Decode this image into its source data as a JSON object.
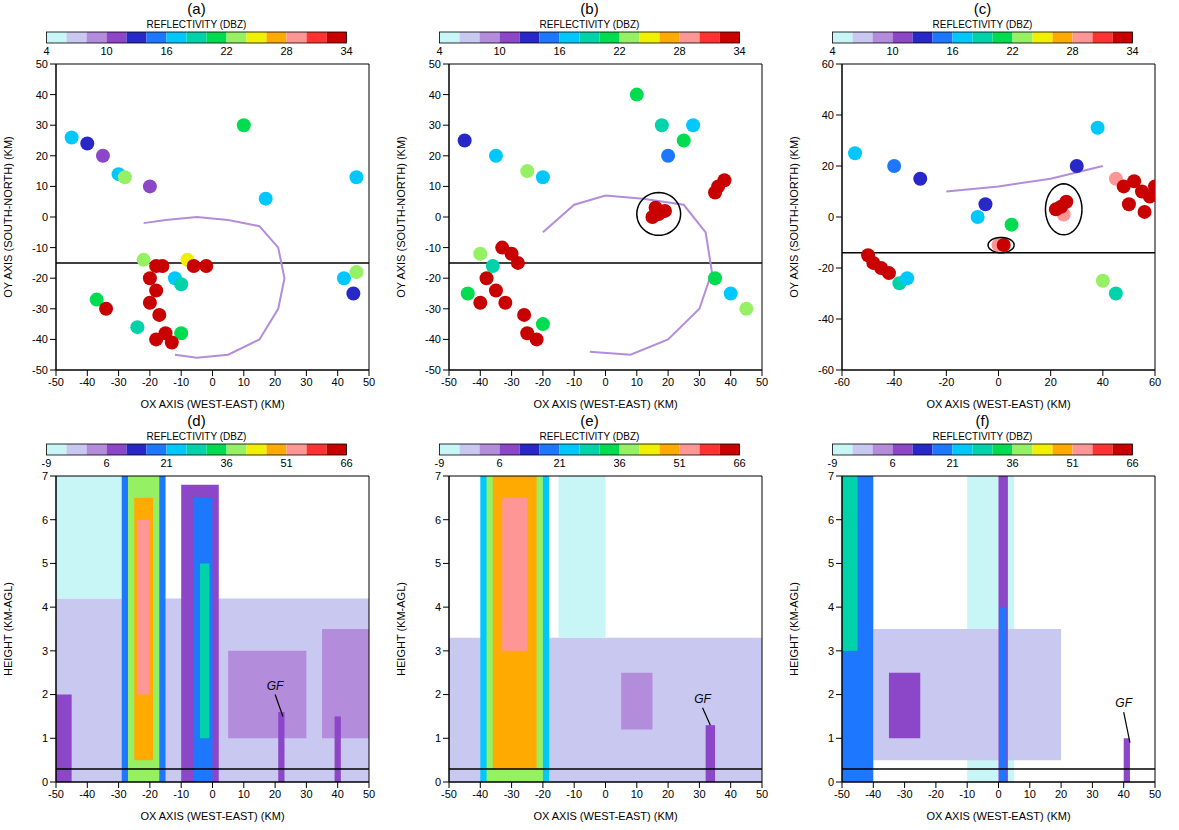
{
  "chart_data": [
    {
      "type": "scatter",
      "title": "(a)",
      "colorbar": {
        "label": "REFLECTIVITY (DBZ)",
        "range": [
          4,
          34
        ],
        "ticks": [
          4,
          10,
          16,
          22,
          28,
          34
        ]
      },
      "x_label": "OX AXIS (WEST-EAST) (KM)",
      "y_label": "OY AXIS (SOUTH-NORTH) (KM)",
      "xlim": [
        -50,
        50
      ],
      "xticks": [
        -50,
        -40,
        -30,
        -20,
        -10,
        0,
        10,
        20,
        30,
        40,
        50
      ],
      "ylim": [
        -50,
        50
      ],
      "yticks": [
        -50,
        -40,
        -30,
        -20,
        -10,
        0,
        10,
        20,
        30,
        40,
        50
      ],
      "outline": {
        "value": 9,
        "points": [
          [
            -22,
            -2
          ],
          [
            -15,
            -1
          ],
          [
            -5,
            0
          ],
          [
            5,
            -1
          ],
          [
            15,
            -3
          ],
          [
            21,
            -10
          ],
          [
            23,
            -20
          ],
          [
            21,
            -30
          ],
          [
            15,
            -40
          ],
          [
            5,
            -45
          ],
          [
            -5,
            -46
          ],
          [
            -12,
            -45
          ]
        ]
      },
      "cells": [
        [
          -45,
          26,
          16
        ],
        [
          -40,
          24,
          12
        ],
        [
          -35,
          20,
          10
        ],
        [
          -30,
          14,
          16
        ],
        [
          -28,
          13,
          22
        ],
        [
          -20,
          10,
          10
        ],
        [
          10,
          30,
          20
        ],
        [
          17,
          6,
          16
        ],
        [
          46,
          13,
          16
        ],
        [
          45,
          -25,
          12
        ],
        [
          42,
          -20,
          16
        ],
        [
          46,
          -18,
          22
        ],
        [
          -22,
          -14,
          22
        ],
        [
          -12,
          -20,
          16
        ],
        [
          -24,
          -36,
          18
        ],
        [
          -10,
          -38,
          20
        ],
        [
          -8,
          -14,
          24
        ],
        [
          -37,
          -27,
          20
        ],
        [
          -10,
          -22,
          18
        ],
        [
          -18,
          -16,
          34
        ],
        [
          -16,
          -16,
          34
        ],
        [
          -20,
          -20,
          34
        ],
        [
          -18,
          -24,
          34
        ],
        [
          -20,
          -28,
          34
        ],
        [
          -17,
          -32,
          34
        ],
        [
          -15,
          -38,
          34
        ],
        [
          -18,
          -40,
          34
        ],
        [
          -13,
          -41,
          34
        ],
        [
          -6,
          -16,
          34
        ],
        [
          -2,
          -16,
          34
        ],
        [
          -34,
          -30,
          34
        ]
      ],
      "circles": [],
      "reference_line": -15
    },
    {
      "type": "scatter",
      "title": "(b)",
      "colorbar": {
        "label": "REFLECTIVITY (DBZ)",
        "range": [
          4,
          34
        ],
        "ticks": [
          4,
          10,
          16,
          22,
          28,
          34
        ]
      },
      "x_label": "OX AXIS (WEST-EAST) (KM)",
      "y_label": "OY AXIS (SOUTH-NORTH) (KM)",
      "xlim": [
        -50,
        50
      ],
      "xticks": [
        -50,
        -40,
        -30,
        -20,
        -10,
        0,
        10,
        20,
        30,
        40,
        50
      ],
      "ylim": [
        -50,
        50
      ],
      "yticks": [
        -50,
        -40,
        -30,
        -20,
        -10,
        0,
        10,
        20,
        30,
        40,
        50
      ],
      "outline": {
        "value": 9,
        "points": [
          [
            -20,
            -5
          ],
          [
            -10,
            4
          ],
          [
            0,
            7
          ],
          [
            12,
            6
          ],
          [
            25,
            4
          ],
          [
            32,
            -5
          ],
          [
            34,
            -18
          ],
          [
            30,
            -30
          ],
          [
            20,
            -40
          ],
          [
            8,
            -45
          ],
          [
            -5,
            -44
          ]
        ]
      },
      "cells": [
        [
          20,
          20,
          14
        ],
        [
          25,
          25,
          20
        ],
        [
          18,
          30,
          18
        ],
        [
          10,
          40,
          20
        ],
        [
          28,
          30,
          16
        ],
        [
          -45,
          25,
          12
        ],
        [
          -35,
          20,
          16
        ],
        [
          -25,
          15,
          22
        ],
        [
          -20,
          13,
          16
        ],
        [
          35,
          -20,
          20
        ],
        [
          40,
          -25,
          16
        ],
        [
          45,
          -30,
          22
        ],
        [
          -40,
          -12,
          22
        ],
        [
          -36,
          -16,
          18
        ],
        [
          -44,
          -25,
          20
        ],
        [
          -20,
          -35,
          20
        ],
        [
          -33,
          -10,
          34
        ],
        [
          -30,
          -12,
          34
        ],
        [
          -28,
          -15,
          34
        ],
        [
          -38,
          -20,
          34
        ],
        [
          -35,
          -24,
          34
        ],
        [
          -40,
          -28,
          34
        ],
        [
          -32,
          -28,
          34
        ],
        [
          -26,
          -32,
          34
        ],
        [
          -25,
          -38,
          34
        ],
        [
          -22,
          -40,
          34
        ],
        [
          17,
          1,
          34
        ],
        [
          15,
          0,
          34
        ],
        [
          19,
          2,
          34
        ],
        [
          16,
          3,
          34
        ],
        [
          36,
          10,
          34
        ],
        [
          38,
          12,
          34
        ],
        [
          35,
          8,
          34
        ]
      ],
      "circles": [
        {
          "x": 17,
          "y": 1,
          "rx": 7,
          "ry": 7
        }
      ],
      "reference_line": -15
    },
    {
      "type": "scatter",
      "title": "(c)",
      "colorbar": {
        "label": "REFLECTIVITY (DBZ)",
        "range": [
          4,
          34
        ],
        "ticks": [
          4,
          10,
          16,
          22,
          28,
          34
        ]
      },
      "x_label": "OX AXIS (WEST-EAST) (KM)",
      "y_label": "OY AXIS (SOUTH-NORTH) (KM)",
      "xlim": [
        -60,
        60
      ],
      "xticks": [
        -60,
        -40,
        -20,
        0,
        20,
        40,
        60
      ],
      "ylim": [
        -60,
        60
      ],
      "yticks": [
        -60,
        -40,
        -20,
        0,
        20,
        40,
        60
      ],
      "outline": {
        "value": 9,
        "points": [
          [
            -20,
            10
          ],
          [
            0,
            12
          ],
          [
            20,
            15
          ],
          [
            40,
            20
          ]
        ]
      },
      "cells": [
        [
          38,
          35,
          16
        ],
        [
          30,
          20,
          12
        ],
        [
          40,
          -25,
          22
        ],
        [
          45,
          -30,
          18
        ],
        [
          -8,
          0,
          16
        ],
        [
          -5,
          5,
          12
        ],
        [
          -40,
          20,
          14
        ],
        [
          -30,
          15,
          12
        ],
        [
          -55,
          25,
          16
        ],
        [
          5,
          -3,
          20
        ],
        [
          -38,
          -26,
          18
        ],
        [
          -35,
          -24,
          16
        ],
        [
          25,
          1,
          28
        ],
        [
          45,
          15,
          28
        ],
        [
          0,
          -11,
          28
        ],
        [
          -48,
          -18,
          34
        ],
        [
          -45,
          -20,
          34
        ],
        [
          -50,
          -15,
          34
        ],
        [
          -42,
          -22,
          34
        ],
        [
          24,
          4,
          34
        ],
        [
          26,
          6,
          34
        ],
        [
          22,
          3,
          34
        ],
        [
          48,
          12,
          34
        ],
        [
          52,
          14,
          34
        ],
        [
          55,
          10,
          34
        ],
        [
          58,
          8,
          34
        ],
        [
          50,
          5,
          34
        ],
        [
          56,
          2,
          34
        ],
        [
          60,
          12,
          34
        ],
        [
          2,
          -11,
          34
        ]
      ],
      "circles": [
        {
          "x": 25,
          "y": 3,
          "rx": 7,
          "ry": 10
        },
        {
          "x": 1,
          "y": -11,
          "rx": 5,
          "ry": 3
        }
      ],
      "reference_line": -14
    },
    {
      "type": "heatmap",
      "title": "(d)",
      "colorbar": {
        "label": "REFLECTIVITY (DBZ)",
        "range": [
          -9,
          66
        ],
        "ticks": [
          -9,
          6,
          21,
          36,
          51,
          66
        ]
      },
      "x_label": "OX AXIS (WEST-EAST) (KM)",
      "y_label": "HEIGHT (KM-AGL)",
      "xlim": [
        -50,
        50
      ],
      "xticks": [
        -50,
        -40,
        -30,
        -20,
        -10,
        0,
        10,
        20,
        30,
        40,
        50
      ],
      "ylim": [
        0,
        7
      ],
      "yticks": [
        0,
        1,
        2,
        3,
        4,
        5,
        6,
        7
      ],
      "cells": [
        {
          "x": [
            -50,
            50
          ],
          "z": [
            0,
            4.2
          ],
          "value": -2
        },
        {
          "x": [
            -50,
            -28
          ],
          "z": [
            4.2,
            7
          ],
          "value": -7
        },
        {
          "x": [
            -50,
            -45
          ],
          "z": [
            0,
            2
          ],
          "value": 9
        },
        {
          "x": [
            5,
            30
          ],
          "z": [
            1,
            3
          ],
          "value": 3
        },
        {
          "x": [
            35,
            50
          ],
          "z": [
            1,
            3.5
          ],
          "value": 3
        },
        {
          "x": [
            -29,
            -15
          ],
          "z": [
            0,
            7
          ],
          "value": 20
        },
        {
          "x": [
            -27,
            -17
          ],
          "z": [
            0,
            7
          ],
          "value": 36
        },
        {
          "x": [
            -25,
            -19
          ],
          "z": [
            0.5,
            6.5
          ],
          "value": 46
        },
        {
          "x": [
            -24,
            -20
          ],
          "z": [
            2,
            6
          ],
          "value": 52
        },
        {
          "x": [
            -10,
            2
          ],
          "z": [
            0,
            6.8
          ],
          "value": 8
        },
        {
          "x": [
            -6,
            0
          ],
          "z": [
            0,
            6.5
          ],
          "value": 18
        },
        {
          "x": [
            -4,
            -1
          ],
          "z": [
            1,
            5
          ],
          "value": 28
        },
        {
          "x": [
            21,
            23
          ],
          "z": [
            0,
            1.6
          ],
          "value": 9
        },
        {
          "x": [
            39,
            41
          ],
          "z": [
            0,
            1.5
          ],
          "value": 9
        }
      ],
      "annotations": [
        {
          "text": "GF",
          "x": 20,
          "y": 2.0,
          "target": [
            22.5,
            1.5
          ]
        }
      ],
      "reference_line": 0.3
    },
    {
      "type": "heatmap",
      "title": "(e)",
      "colorbar": {
        "label": "REFLECTIVITY (DBZ)",
        "range": [
          -9,
          66
        ],
        "ticks": [
          -9,
          6,
          21,
          36,
          51,
          66
        ]
      },
      "x_label": "OX AXIS (WEST-EAST) (KM)",
      "y_label": "HEIGHT (KM-AGL)",
      "xlim": [
        -50,
        50
      ],
      "xticks": [
        -50,
        -40,
        -30,
        -20,
        -10,
        0,
        10,
        20,
        30,
        40,
        50
      ],
      "ylim": [
        0,
        7
      ],
      "yticks": [
        0,
        1,
        2,
        3,
        4,
        5,
        6,
        7
      ],
      "cells": [
        {
          "x": [
            -50,
            50
          ],
          "z": [
            0,
            3.3
          ],
          "value": -2
        },
        {
          "x": [
            -15,
            0
          ],
          "z": [
            3.3,
            7
          ],
          "value": -7
        },
        {
          "x": [
            5,
            15
          ],
          "z": [
            1.2,
            2.5
          ],
          "value": 3
        },
        {
          "x": [
            -40,
            -18
          ],
          "z": [
            0,
            7
          ],
          "value": 21
        },
        {
          "x": [
            -38,
            -20
          ],
          "z": [
            0,
            7
          ],
          "value": 36
        },
        {
          "x": [
            -36,
            -22
          ],
          "z": [
            0.3,
            7
          ],
          "value": 46
        },
        {
          "x": [
            -33,
            -25
          ],
          "z": [
            3,
            6.5
          ],
          "value": 52
        },
        {
          "x": [
            32,
            35
          ],
          "z": [
            0,
            1.3
          ],
          "value": 9
        }
      ],
      "annotations": [
        {
          "text": "GF",
          "x": 31,
          "y": 1.7,
          "target": [
            33.5,
            1.3
          ]
        }
      ],
      "reference_line": 0.3
    },
    {
      "type": "heatmap",
      "title": "(f)",
      "colorbar": {
        "label": "REFLECTIVITY (DBZ)",
        "range": [
          -9,
          66
        ],
        "ticks": [
          -9,
          6,
          21,
          36,
          51,
          66
        ]
      },
      "x_label": "OX AXIS (WEST-EAST) (KM)",
      "y_label": "HEIGHT (KM-AGL)",
      "xlim": [
        -50,
        50
      ],
      "xticks": [
        -50,
        -40,
        -30,
        -20,
        -10,
        0,
        10,
        20,
        30,
        40,
        50
      ],
      "ylim": [
        0,
        7
      ],
      "yticks": [
        0,
        1,
        2,
        3,
        4,
        5,
        6,
        7
      ],
      "cells": [
        {
          "x": [
            -10,
            5
          ],
          "z": [
            0,
            7
          ],
          "value": -7
        },
        {
          "x": [
            -40,
            20
          ],
          "z": [
            0.5,
            3.5
          ],
          "value": -2
        },
        {
          "x": [
            -35,
            -25
          ],
          "z": [
            1,
            2.5
          ],
          "value": 8
        },
        {
          "x": [
            -50,
            -40
          ],
          "z": [
            0,
            7
          ],
          "value": 16
        },
        {
          "x": [
            -50,
            -45
          ],
          "z": [
            3,
            7
          ],
          "value": 30
        },
        {
          "x": [
            0,
            3
          ],
          "z": [
            0,
            7
          ],
          "value": 8
        },
        {
          "x": [
            0.5,
            2.5
          ],
          "z": [
            0,
            4
          ],
          "value": 16
        },
        {
          "x": [
            40,
            42
          ],
          "z": [
            0,
            1
          ],
          "value": 9
        }
      ],
      "annotations": [
        {
          "text": "GF",
          "x": 40,
          "y": 1.6,
          "target": [
            42,
            0.9
          ]
        }
      ],
      "reference_line": 0.3
    }
  ]
}
